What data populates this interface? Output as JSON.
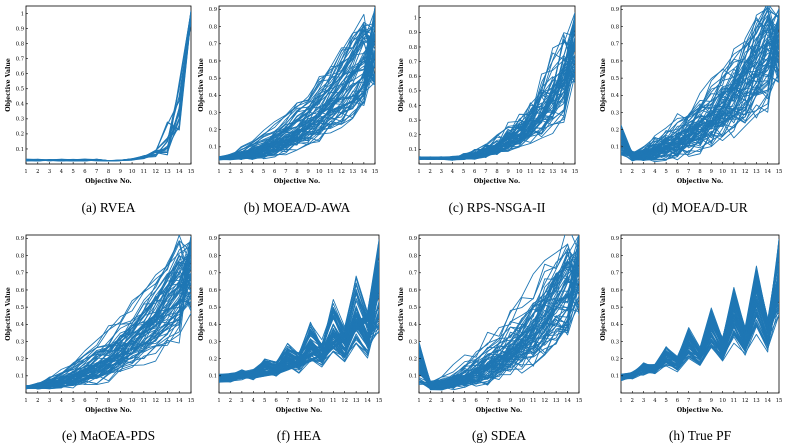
{
  "figure": {
    "line_color": "#1f77b4",
    "background": "#ffffff"
  },
  "chart_data": [
    {
      "id": "a",
      "type": "line",
      "caption": "(a)  RVEA",
      "title": "RVEA",
      "xlabel": "Objective No.",
      "ylabel": "Objective Value",
      "xlim": [
        1,
        15
      ],
      "ylim": [
        0,
        1.05
      ],
      "xticks": [
        "1",
        "2",
        "3",
        "4",
        "5",
        "6",
        "7",
        "8",
        "9",
        "10",
        "11",
        "12",
        "13",
        "14",
        "15"
      ],
      "yticks": [
        0.1,
        0.2,
        0.3,
        0.4,
        0.5,
        0.6,
        0.7,
        0.8,
        0.9,
        1
      ],
      "ytick_labels": [
        "0.1",
        "0.2",
        "0.3",
        "0.4",
        "0.5",
        "0.6",
        "0.7",
        "0.8",
        "0.9",
        "1"
      ],
      "profile": "rvea",
      "n_lines": 14
    },
    {
      "id": "b",
      "type": "line",
      "caption": "(b)  MOEA/D-AWA",
      "title": "MOEA/D-AWA",
      "xlabel": "Objective No.",
      "ylabel": "Objective Value",
      "xlim": [
        1,
        15
      ],
      "ylim": [
        0,
        0.92
      ],
      "xticks": [
        "1",
        "2",
        "3",
        "4",
        "5",
        "6",
        "7",
        "8",
        "9",
        "10",
        "11",
        "12",
        "13",
        "14",
        "15"
      ],
      "yticks": [
        0.1,
        0.2,
        0.3,
        0.4,
        0.5,
        0.6,
        0.7,
        0.8,
        0.9
      ],
      "ytick_labels": [
        "0.1",
        "0.2",
        "0.3",
        "0.4",
        "0.5",
        "0.6",
        "0.7",
        "0.8",
        "0.9"
      ],
      "profile": "awa",
      "n_lines": 70
    },
    {
      "id": "c",
      "type": "line",
      "caption": "(c)  RPS-NSGA-II",
      "title": "RPS-NSGA-II",
      "xlabel": "Objective No.",
      "ylabel": "Objective Value",
      "xlim": [
        1,
        15
      ],
      "ylim": [
        0,
        1.08
      ],
      "xticks": [
        "1",
        "2",
        "3",
        "4",
        "5",
        "6",
        "7",
        "8",
        "9",
        "10",
        "11",
        "12",
        "13",
        "14",
        "15"
      ],
      "yticks": [
        0.1,
        0.2,
        0.3,
        0.4,
        0.5,
        0.6,
        0.7,
        0.8,
        0.9,
        1
      ],
      "ytick_labels": [
        "0.1",
        "0.2",
        "0.3",
        "0.4",
        "0.5",
        "0.6",
        "0.7",
        "0.8",
        "0.9",
        "1"
      ],
      "profile": "rps",
      "n_lines": 60
    },
    {
      "id": "d",
      "type": "line",
      "caption": "(d)  MOEA/D-UR",
      "title": "MOEA/D-UR",
      "xlabel": "Objective No.",
      "ylabel": "Objective Value",
      "xlim": [
        1,
        15
      ],
      "ylim": [
        0,
        0.92
      ],
      "xticks": [
        "1",
        "2",
        "3",
        "4",
        "5",
        "6",
        "7",
        "8",
        "9",
        "10",
        "11",
        "12",
        "13",
        "14",
        "15"
      ],
      "yticks": [
        0.1,
        0.2,
        0.3,
        0.4,
        0.5,
        0.6,
        0.7,
        0.8,
        0.9
      ],
      "ytick_labels": [
        "0.1",
        "0.2",
        "0.3",
        "0.4",
        "0.5",
        "0.6",
        "0.7",
        "0.8",
        "0.9"
      ],
      "profile": "ur",
      "n_lines": 70
    },
    {
      "id": "e",
      "type": "line",
      "caption": "(e)  MaOEA-PDS",
      "title": "MaOEA-PDS",
      "xlabel": "Objective No.",
      "ylabel": "Objective Value",
      "xlim": [
        1,
        15
      ],
      "ylim": [
        0,
        0.92
      ],
      "xticks": [
        "1",
        "2",
        "3",
        "4",
        "5",
        "6",
        "7",
        "8",
        "9",
        "10",
        "11",
        "12",
        "13",
        "14",
        "15"
      ],
      "yticks": [
        0.1,
        0.2,
        0.3,
        0.4,
        0.5,
        0.6,
        0.7,
        0.8,
        0.9
      ],
      "ytick_labels": [
        "0.1",
        "0.2",
        "0.3",
        "0.4",
        "0.5",
        "0.6",
        "0.7",
        "0.8",
        "0.9"
      ],
      "profile": "pds",
      "n_lines": 70
    },
    {
      "id": "f",
      "type": "line",
      "caption": "(f)  HEA",
      "title": "HEA",
      "xlabel": "Objective No.",
      "ylabel": "Objective Value",
      "xlim": [
        1,
        15
      ],
      "ylim": [
        0,
        0.92
      ],
      "xticks": [
        "1",
        "2",
        "3",
        "4",
        "5",
        "6",
        "7",
        "8",
        "9",
        "10",
        "11",
        "12",
        "13",
        "14",
        "15"
      ],
      "yticks": [
        0.1,
        0.2,
        0.3,
        0.4,
        0.5,
        0.6,
        0.7,
        0.8,
        0.9
      ],
      "ytick_labels": [
        "0.1",
        "0.2",
        "0.3",
        "0.4",
        "0.5",
        "0.6",
        "0.7",
        "0.8",
        "0.9"
      ],
      "profile": "hea",
      "n_lines": 60
    },
    {
      "id": "g",
      "type": "line",
      "caption": "(g)  SDEA",
      "title": "SDEA",
      "xlabel": "Objective No.",
      "ylabel": "Objective Value",
      "xlim": [
        1,
        15
      ],
      "ylim": [
        0,
        0.92
      ],
      "xticks": [
        "1",
        "2",
        "3",
        "4",
        "5",
        "6",
        "7",
        "8",
        "9",
        "10",
        "11",
        "12",
        "13",
        "14",
        "15"
      ],
      "yticks": [
        0.1,
        0.2,
        0.3,
        0.4,
        0.5,
        0.6,
        0.7,
        0.8,
        0.9
      ],
      "ytick_labels": [
        "0.1",
        "0.2",
        "0.3",
        "0.4",
        "0.5",
        "0.6",
        "0.7",
        "0.8",
        "0.9"
      ],
      "profile": "sdea",
      "n_lines": 70
    },
    {
      "id": "h",
      "type": "line",
      "caption": "(h)  True PF",
      "title": "True PF",
      "xlabel": "Objective No.",
      "ylabel": "Objective Value",
      "xlim": [
        1,
        15
      ],
      "ylim": [
        0,
        0.92
      ],
      "xticks": [
        "1",
        "2",
        "3",
        "4",
        "5",
        "6",
        "7",
        "8",
        "9",
        "10",
        "11",
        "12",
        "13",
        "14",
        "15"
      ],
      "yticks": [
        0.1,
        0.2,
        0.3,
        0.4,
        0.5,
        0.6,
        0.7,
        0.8,
        0.9
      ],
      "ytick_labels": [
        "0.1",
        "0.2",
        "0.3",
        "0.4",
        "0.5",
        "0.6",
        "0.7",
        "0.8",
        "0.9"
      ],
      "profile": "true",
      "n_lines": 60
    }
  ]
}
